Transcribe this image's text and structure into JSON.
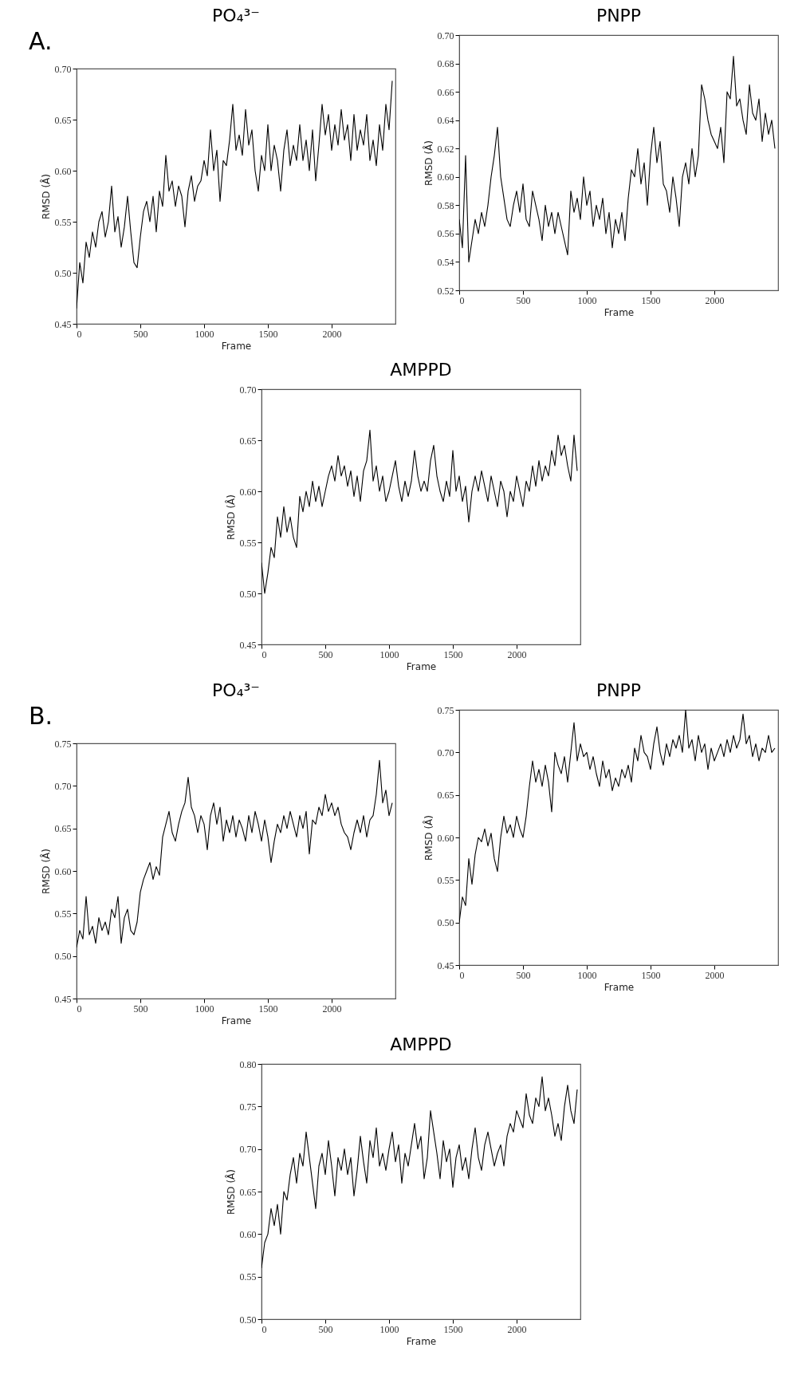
{
  "chart_data": [
    {
      "type": "line",
      "title": "PO₄³⁻",
      "xlabel": "Frame",
      "ylabel": "RMSD (Å)",
      "annotations": [
        "A."
      ],
      "xlim": [
        0,
        2500
      ],
      "xticks": [
        0,
        500,
        1000,
        1500,
        2000
      ],
      "ylim": [
        0.45,
        0.7
      ],
      "yticks": [
        0.45,
        {
          "value": 0.5,
          "label": "0.50"
        },
        0.55,
        {
          "value": 0.6,
          "label": "0.60"
        },
        0.65,
        {
          "value": 0.7,
          "label": "0.70"
        }
      ],
      "x": [
        0,
        25,
        50,
        75,
        100,
        125,
        150,
        175,
        200,
        225,
        250,
        275,
        300,
        325,
        350,
        375,
        400,
        425,
        450,
        475,
        500,
        525,
        550,
        575,
        600,
        625,
        650,
        675,
        700,
        725,
        750,
        775,
        800,
        825,
        850,
        875,
        900,
        925,
        950,
        975,
        1000,
        1025,
        1050,
        1075,
        1100,
        1125,
        1150,
        1175,
        1200,
        1225,
        1250,
        1275,
        1300,
        1325,
        1350,
        1375,
        1400,
        1425,
        1450,
        1475,
        1500,
        1525,
        1550,
        1575,
        1600,
        1625,
        1650,
        1675,
        1700,
        1725,
        1750,
        1775,
        1800,
        1825,
        1850,
        1875,
        1900,
        1925,
        1950,
        1975,
        2000,
        2025,
        2050,
        2075,
        2100,
        2125,
        2150,
        2175,
        2200,
        2225,
        2250,
        2275,
        2300,
        2325,
        2350,
        2375,
        2400,
        2425,
        2450,
        2475
      ],
      "series": [
        {
          "color": "#000000",
          "values": [
            0.465,
            0.51,
            0.49,
            0.53,
            0.515,
            0.54,
            0.525,
            0.55,
            0.56,
            0.535,
            0.55,
            0.585,
            0.54,
            0.555,
            0.525,
            0.545,
            0.575,
            0.54,
            0.51,
            0.505,
            0.535,
            0.56,
            0.57,
            0.55,
            0.575,
            0.54,
            0.58,
            0.565,
            0.615,
            0.58,
            0.59,
            0.565,
            0.585,
            0.575,
            0.545,
            0.58,
            0.595,
            0.57,
            0.585,
            0.59,
            0.61,
            0.595,
            0.64,
            0.6,
            0.62,
            0.57,
            0.61,
            0.605,
            0.63,
            0.665,
            0.62,
            0.635,
            0.615,
            0.66,
            0.625,
            0.64,
            0.6,
            0.58,
            0.615,
            0.6,
            0.645,
            0.6,
            0.625,
            0.61,
            0.58,
            0.62,
            0.64,
            0.605,
            0.625,
            0.61,
            0.645,
            0.61,
            0.63,
            0.6,
            0.64,
            0.59,
            0.625,
            0.665,
            0.635,
            0.655,
            0.62,
            0.645,
            0.625,
            0.66,
            0.63,
            0.645,
            0.61,
            0.655,
            0.62,
            0.64,
            0.625,
            0.655,
            0.61,
            0.63,
            0.605,
            0.645,
            0.62,
            0.665,
            0.64,
            0.688
          ]
        }
      ]
    },
    {
      "type": "line",
      "title": "PNPP",
      "xlabel": "Frame",
      "ylabel": "RMSD (Å)",
      "xlim": [
        0,
        2500
      ],
      "xticks": [
        0,
        500,
        1000,
        1500,
        2000
      ],
      "ylim": [
        0.52,
        0.7
      ],
      "yticks": [
        0.52,
        0.54,
        0.56,
        0.58,
        {
          "value": 0.6,
          "label": "0.60"
        },
        0.62,
        0.64,
        0.66,
        0.68,
        {
          "value": 0.7,
          "label": "0.70"
        }
      ],
      "x": [
        0,
        25,
        50,
        75,
        100,
        125,
        150,
        175,
        200,
        225,
        250,
        275,
        300,
        325,
        350,
        375,
        400,
        425,
        450,
        475,
        500,
        525,
        550,
        575,
        600,
        625,
        650,
        675,
        700,
        725,
        750,
        775,
        800,
        825,
        850,
        875,
        900,
        925,
        950,
        975,
        1000,
        1025,
        1050,
        1075,
        1100,
        1125,
        1150,
        1175,
        1200,
        1225,
        1250,
        1275,
        1300,
        1325,
        1350,
        1375,
        1400,
        1425,
        1450,
        1475,
        1500,
        1525,
        1550,
        1575,
        1600,
        1625,
        1650,
        1675,
        1700,
        1725,
        1750,
        1775,
        1800,
        1825,
        1850,
        1875,
        1900,
        1925,
        1950,
        1975,
        2000,
        2025,
        2050,
        2075,
        2100,
        2125,
        2150,
        2175,
        2200,
        2225,
        2250,
        2275,
        2300,
        2325,
        2350,
        2375,
        2400,
        2425,
        2450,
        2475
      ],
      "series": [
        {
          "color": "#000000",
          "values": [
            0.57,
            0.55,
            0.615,
            0.54,
            0.555,
            0.57,
            0.56,
            0.575,
            0.565,
            0.58,
            0.6,
            0.615,
            0.635,
            0.6,
            0.585,
            0.57,
            0.565,
            0.58,
            0.59,
            0.575,
            0.595,
            0.57,
            0.565,
            0.59,
            0.58,
            0.57,
            0.555,
            0.58,
            0.565,
            0.575,
            0.56,
            0.575,
            0.565,
            0.555,
            0.545,
            0.59,
            0.575,
            0.585,
            0.57,
            0.6,
            0.58,
            0.59,
            0.565,
            0.58,
            0.57,
            0.585,
            0.56,
            0.575,
            0.55,
            0.57,
            0.56,
            0.575,
            0.555,
            0.585,
            0.605,
            0.6,
            0.62,
            0.595,
            0.61,
            0.58,
            0.615,
            0.635,
            0.61,
            0.625,
            0.595,
            0.59,
            0.575,
            0.6,
            0.585,
            0.565,
            0.6,
            0.61,
            0.595,
            0.62,
            0.6,
            0.615,
            0.665,
            0.655,
            0.64,
            0.63,
            0.625,
            0.62,
            0.635,
            0.61,
            0.66,
            0.655,
            0.685,
            0.65,
            0.655,
            0.64,
            0.63,
            0.665,
            0.645,
            0.64,
            0.655,
            0.625,
            0.645,
            0.63,
            0.64,
            0.62
          ]
        }
      ]
    },
    {
      "type": "line",
      "title": "AMPPD",
      "xlabel": "Frame",
      "ylabel": "RMSD (Å)",
      "xlim": [
        0,
        2500
      ],
      "xticks": [
        0,
        500,
        1000,
        1500,
        2000
      ],
      "ylim": [
        0.45,
        0.7
      ],
      "yticks": [
        0.45,
        {
          "value": 0.5,
          "label": "0.50"
        },
        0.55,
        {
          "value": 0.6,
          "label": "0.60"
        },
        0.65,
        {
          "value": 0.7,
          "label": "0.70"
        }
      ],
      "x": [
        0,
        25,
        50,
        75,
        100,
        125,
        150,
        175,
        200,
        225,
        250,
        275,
        300,
        325,
        350,
        375,
        400,
        425,
        450,
        475,
        500,
        525,
        550,
        575,
        600,
        625,
        650,
        675,
        700,
        725,
        750,
        775,
        800,
        825,
        850,
        875,
        900,
        925,
        950,
        975,
        1000,
        1025,
        1050,
        1075,
        1100,
        1125,
        1150,
        1175,
        1200,
        1225,
        1250,
        1275,
        1300,
        1325,
        1350,
        1375,
        1400,
        1425,
        1450,
        1475,
        1500,
        1525,
        1550,
        1575,
        1600,
        1625,
        1650,
        1675,
        1700,
        1725,
        1750,
        1775,
        1800,
        1825,
        1850,
        1875,
        1900,
        1925,
        1950,
        1975,
        2000,
        2025,
        2050,
        2075,
        2100,
        2125,
        2150,
        2175,
        2200,
        2225,
        2250,
        2275,
        2300,
        2325,
        2350,
        2375,
        2400,
        2425,
        2450,
        2475
      ],
      "series": [
        {
          "color": "#000000",
          "values": [
            0.53,
            0.5,
            0.52,
            0.545,
            0.535,
            0.575,
            0.555,
            0.585,
            0.56,
            0.575,
            0.555,
            0.545,
            0.595,
            0.58,
            0.6,
            0.585,
            0.61,
            0.59,
            0.605,
            0.585,
            0.6,
            0.615,
            0.625,
            0.61,
            0.635,
            0.615,
            0.625,
            0.605,
            0.62,
            0.595,
            0.615,
            0.59,
            0.62,
            0.63,
            0.66,
            0.61,
            0.625,
            0.6,
            0.615,
            0.59,
            0.6,
            0.615,
            0.63,
            0.605,
            0.59,
            0.61,
            0.595,
            0.61,
            0.64,
            0.615,
            0.6,
            0.61,
            0.6,
            0.63,
            0.645,
            0.615,
            0.6,
            0.59,
            0.61,
            0.595,
            0.64,
            0.6,
            0.615,
            0.59,
            0.605,
            0.57,
            0.6,
            0.615,
            0.6,
            0.62,
            0.605,
            0.59,
            0.615,
            0.6,
            0.585,
            0.61,
            0.6,
            0.575,
            0.6,
            0.59,
            0.615,
            0.6,
            0.585,
            0.61,
            0.6,
            0.625,
            0.605,
            0.63,
            0.61,
            0.625,
            0.615,
            0.64,
            0.625,
            0.655,
            0.635,
            0.645,
            0.625,
            0.61,
            0.655,
            0.62
          ]
        }
      ]
    },
    {
      "type": "line",
      "title": "PO₄³⁻",
      "xlabel": "Frame",
      "ylabel": "RMSD (Å)",
      "annotations": [
        "B."
      ],
      "xlim": [
        0,
        2500
      ],
      "xticks": [
        0,
        500,
        1000,
        1500,
        2000
      ],
      "ylim": [
        0.45,
        0.75
      ],
      "yticks": [
        0.45,
        {
          "value": 0.5,
          "label": "0.50"
        },
        0.55,
        {
          "value": 0.6,
          "label": "0.60"
        },
        0.65,
        {
          "value": 0.7,
          "label": "0.70"
        },
        0.75
      ],
      "x": [
        0,
        25,
        50,
        75,
        100,
        125,
        150,
        175,
        200,
        225,
        250,
        275,
        300,
        325,
        350,
        375,
        400,
        425,
        450,
        475,
        500,
        525,
        550,
        575,
        600,
        625,
        650,
        675,
        700,
        725,
        750,
        775,
        800,
        825,
        850,
        875,
        900,
        925,
        950,
        975,
        1000,
        1025,
        1050,
        1075,
        1100,
        1125,
        1150,
        1175,
        1200,
        1225,
        1250,
        1275,
        1300,
        1325,
        1350,
        1375,
        1400,
        1425,
        1450,
        1475,
        1500,
        1525,
        1550,
        1575,
        1600,
        1625,
        1650,
        1675,
        1700,
        1725,
        1750,
        1775,
        1800,
        1825,
        1850,
        1875,
        1900,
        1925,
        1950,
        1975,
        2000,
        2025,
        2050,
        2075,
        2100,
        2125,
        2150,
        2175,
        2200,
        2225,
        2250,
        2275,
        2300,
        2325,
        2350,
        2375,
        2400,
        2425,
        2450,
        2475
      ],
      "series": [
        {
          "color": "#000000",
          "values": [
            0.51,
            0.53,
            0.52,
            0.57,
            0.525,
            0.535,
            0.515,
            0.545,
            0.53,
            0.54,
            0.525,
            0.555,
            0.545,
            0.57,
            0.515,
            0.545,
            0.555,
            0.53,
            0.525,
            0.54,
            0.575,
            0.59,
            0.6,
            0.61,
            0.59,
            0.605,
            0.595,
            0.64,
            0.655,
            0.67,
            0.645,
            0.635,
            0.655,
            0.67,
            0.68,
            0.71,
            0.675,
            0.665,
            0.645,
            0.665,
            0.655,
            0.625,
            0.665,
            0.68,
            0.655,
            0.675,
            0.635,
            0.66,
            0.645,
            0.665,
            0.64,
            0.66,
            0.65,
            0.635,
            0.665,
            0.645,
            0.67,
            0.655,
            0.635,
            0.66,
            0.64,
            0.61,
            0.635,
            0.655,
            0.645,
            0.665,
            0.65,
            0.67,
            0.655,
            0.64,
            0.665,
            0.65,
            0.67,
            0.62,
            0.66,
            0.655,
            0.675,
            0.665,
            0.69,
            0.67,
            0.68,
            0.665,
            0.675,
            0.655,
            0.645,
            0.64,
            0.625,
            0.645,
            0.66,
            0.645,
            0.665,
            0.64,
            0.66,
            0.665,
            0.69,
            0.73,
            0.68,
            0.695,
            0.665,
            0.68
          ]
        }
      ]
    },
    {
      "type": "line",
      "title": "PNPP",
      "xlabel": "Frame",
      "ylabel": "RMSD (Å)",
      "xlim": [
        0,
        2500
      ],
      "xticks": [
        0,
        500,
        1000,
        1500,
        2000
      ],
      "ylim": [
        0.45,
        0.75
      ],
      "yticks": [
        0.45,
        {
          "value": 0.5,
          "label": "0.50"
        },
        0.55,
        {
          "value": 0.6,
          "label": "0.60"
        },
        0.65,
        {
          "value": 0.7,
          "label": "0.70"
        },
        0.75
      ],
      "x": [
        0,
        25,
        50,
        75,
        100,
        125,
        150,
        175,
        200,
        225,
        250,
        275,
        300,
        325,
        350,
        375,
        400,
        425,
        450,
        475,
        500,
        525,
        550,
        575,
        600,
        625,
        650,
        675,
        700,
        725,
        750,
        775,
        800,
        825,
        850,
        875,
        900,
        925,
        950,
        975,
        1000,
        1025,
        1050,
        1075,
        1100,
        1125,
        1150,
        1175,
        1200,
        1225,
        1250,
        1275,
        1300,
        1325,
        1350,
        1375,
        1400,
        1425,
        1450,
        1475,
        1500,
        1525,
        1550,
        1575,
        1600,
        1625,
        1650,
        1675,
        1700,
        1725,
        1750,
        1775,
        1800,
        1825,
        1850,
        1875,
        1900,
        1925,
        1950,
        1975,
        2000,
        2025,
        2050,
        2075,
        2100,
        2125,
        2150,
        2175,
        2200,
        2225,
        2250,
        2275,
        2300,
        2325,
        2350,
        2375,
        2400,
        2425,
        2450,
        2475
      ],
      "series": [
        {
          "color": "#000000",
          "values": [
            0.5,
            0.53,
            0.52,
            0.575,
            0.545,
            0.58,
            0.6,
            0.595,
            0.61,
            0.59,
            0.605,
            0.575,
            0.56,
            0.6,
            0.625,
            0.605,
            0.615,
            0.6,
            0.625,
            0.61,
            0.6,
            0.625,
            0.66,
            0.69,
            0.665,
            0.68,
            0.66,
            0.685,
            0.665,
            0.63,
            0.7,
            0.685,
            0.675,
            0.695,
            0.665,
            0.7,
            0.735,
            0.69,
            0.71,
            0.695,
            0.7,
            0.68,
            0.695,
            0.675,
            0.66,
            0.69,
            0.67,
            0.68,
            0.655,
            0.67,
            0.66,
            0.68,
            0.67,
            0.685,
            0.665,
            0.705,
            0.69,
            0.72,
            0.7,
            0.695,
            0.68,
            0.71,
            0.73,
            0.7,
            0.685,
            0.71,
            0.695,
            0.715,
            0.705,
            0.72,
            0.7,
            0.75,
            0.705,
            0.715,
            0.69,
            0.72,
            0.7,
            0.71,
            0.68,
            0.705,
            0.69,
            0.7,
            0.71,
            0.695,
            0.715,
            0.7,
            0.72,
            0.705,
            0.715,
            0.745,
            0.71,
            0.72,
            0.695,
            0.71,
            0.69,
            0.705,
            0.7,
            0.72,
            0.7,
            0.705
          ]
        }
      ]
    },
    {
      "type": "line",
      "title": "AMPPD",
      "xlabel": "Frame",
      "ylabel": "RMSD (Å)",
      "xlim": [
        0,
        2500
      ],
      "xticks": [
        0,
        500,
        1000,
        1500,
        2000
      ],
      "ylim": [
        0.5,
        0.8
      ],
      "yticks": [
        {
          "value": 0.5,
          "label": "0.50"
        },
        0.55,
        {
          "value": 0.6,
          "label": "0.60"
        },
        0.65,
        {
          "value": 0.7,
          "label": "0.70"
        },
        0.75,
        {
          "value": 0.8,
          "label": "0.80"
        }
      ],
      "x": [
        0,
        25,
        50,
        75,
        100,
        125,
        150,
        175,
        200,
        225,
        250,
        275,
        300,
        325,
        350,
        375,
        400,
        425,
        450,
        475,
        500,
        525,
        550,
        575,
        600,
        625,
        650,
        675,
        700,
        725,
        750,
        775,
        800,
        825,
        850,
        875,
        900,
        925,
        950,
        975,
        1000,
        1025,
        1050,
        1075,
        1100,
        1125,
        1150,
        1175,
        1200,
        1225,
        1250,
        1275,
        1300,
        1325,
        1350,
        1375,
        1400,
        1425,
        1450,
        1475,
        1500,
        1525,
        1550,
        1575,
        1600,
        1625,
        1650,
        1675,
        1700,
        1725,
        1750,
        1775,
        1800,
        1825,
        1850,
        1875,
        1900,
        1925,
        1950,
        1975,
        2000,
        2025,
        2050,
        2075,
        2100,
        2125,
        2150,
        2175,
        2200,
        2225,
        2250,
        2275,
        2300,
        2325,
        2350,
        2375,
        2400,
        2425,
        2450,
        2475
      ],
      "series": [
        {
          "color": "#000000",
          "values": [
            0.56,
            0.59,
            0.6,
            0.63,
            0.61,
            0.635,
            0.6,
            0.65,
            0.64,
            0.67,
            0.69,
            0.66,
            0.695,
            0.68,
            0.72,
            0.69,
            0.66,
            0.63,
            0.68,
            0.695,
            0.67,
            0.71,
            0.68,
            0.645,
            0.69,
            0.675,
            0.7,
            0.67,
            0.69,
            0.645,
            0.675,
            0.715,
            0.685,
            0.66,
            0.71,
            0.69,
            0.725,
            0.68,
            0.695,
            0.675,
            0.7,
            0.72,
            0.685,
            0.705,
            0.66,
            0.695,
            0.68,
            0.705,
            0.73,
            0.7,
            0.715,
            0.665,
            0.69,
            0.745,
            0.72,
            0.695,
            0.665,
            0.71,
            0.685,
            0.7,
            0.655,
            0.69,
            0.705,
            0.675,
            0.69,
            0.665,
            0.7,
            0.725,
            0.69,
            0.675,
            0.705,
            0.72,
            0.7,
            0.68,
            0.695,
            0.705,
            0.68,
            0.715,
            0.73,
            0.72,
            0.745,
            0.735,
            0.725,
            0.765,
            0.74,
            0.73,
            0.76,
            0.75,
            0.785,
            0.745,
            0.76,
            0.74,
            0.715,
            0.73,
            0.71,
            0.75,
            0.775,
            0.745,
            0.73,
            0.77
          ]
        }
      ]
    }
  ]
}
